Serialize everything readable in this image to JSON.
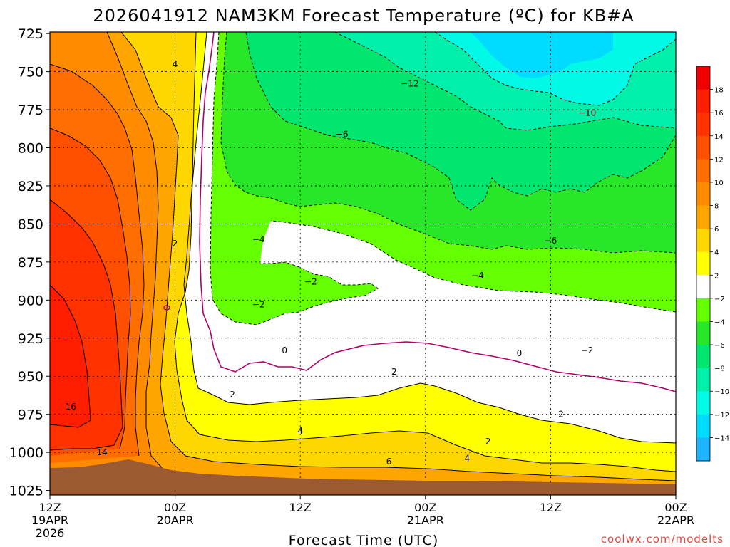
{
  "chart_data": {
    "type": "heatmap",
    "title": "2026041912 NAM3KM Forecast Temperature (ºC) for KB#A",
    "xlabel": "Forecast Time (UTC)",
    "ylabel": "",
    "y_ticks": [
      "725",
      "750",
      "775",
      "800",
      "825",
      "850",
      "875",
      "900",
      "925",
      "950",
      "975",
      "1000",
      "1025"
    ],
    "y_values": [
      725,
      750,
      775,
      800,
      825,
      850,
      875,
      900,
      925,
      950,
      975,
      1000,
      1025
    ],
    "ylim": [
      1028,
      724
    ],
    "x_ticks": [
      {
        "hour": 0,
        "line1": "12Z",
        "line2": "19APR",
        "line3": "2026"
      },
      {
        "hour": 12,
        "line1": "00Z",
        "line2": "20APR",
        "line3": ""
      },
      {
        "hour": 24,
        "line1": "12Z",
        "line2": "",
        "line3": ""
      },
      {
        "hour": 36,
        "line1": "00Z",
        "line2": "21APR",
        "line3": ""
      },
      {
        "hour": 48,
        "line1": "12Z",
        "line2": "",
        "line3": ""
      },
      {
        "hour": 60,
        "line1": "00Z",
        "line2": "22APR",
        "line3": ""
      }
    ],
    "xlim": [
      0,
      60
    ],
    "colorbar": {
      "boundaries": [
        -16,
        -14,
        -12,
        -10,
        -8,
        -6,
        -4,
        -2,
        2,
        4,
        6,
        8,
        10,
        12,
        14,
        16,
        18,
        20
      ],
      "colors": [
        "#1eb4ff",
        "#00dcff",
        "#00fae6",
        "#00f0aa",
        "#00e66e",
        "#28e628",
        "#64ff00",
        "#ffffff",
        "#ffff00",
        "#ffd700",
        "#ffa500",
        "#ff8c00",
        "#ff6e00",
        "#ff5000",
        "#ff3200",
        "#ff1e00",
        "#f00000"
      ],
      "tick_labels": [
        "18",
        "16",
        "14",
        "12",
        "10",
        "8",
        "6",
        "4",
        "2",
        "−2",
        "−4",
        "−6",
        "−8",
        "−10",
        "−12",
        "−14"
      ]
    },
    "contours": [
      {
        "label": "-12",
        "hour": 34.5,
        "p": 758
      },
      {
        "label": "-10",
        "hour": 51.5,
        "p": 777
      },
      {
        "label": "-6",
        "hour": 28.0,
        "p": 791
      },
      {
        "label": "-6",
        "hour": 48.0,
        "p": 861
      },
      {
        "label": "-4",
        "hour": 20.0,
        "p": 860
      },
      {
        "label": "-4",
        "hour": 41.0,
        "p": 884
      },
      {
        "label": "-2",
        "hour": 25.0,
        "p": 888
      },
      {
        "label": "-2",
        "hour": 20.0,
        "p": 903
      },
      {
        "label": "-2",
        "hour": 51.5,
        "p": 933
      },
      {
        "label": "0",
        "hour": 22.5,
        "p": 933
      },
      {
        "label": "0",
        "hour": 45.0,
        "p": 935
      },
      {
        "label": "2",
        "hour": 12.0,
        "p": 863
      },
      {
        "label": "2",
        "hour": 17.5,
        "p": 962
      },
      {
        "label": "2",
        "hour": 33.0,
        "p": 947
      },
      {
        "label": "2",
        "hour": 42.0,
        "p": 993
      },
      {
        "label": "2",
        "hour": 49.0,
        "p": 975
      },
      {
        "label": "4",
        "hour": 12.0,
        "p": 745
      },
      {
        "label": "4",
        "hour": 24.0,
        "p": 986
      },
      {
        "label": "4",
        "hour": 40.0,
        "p": 1004
      },
      {
        "label": "6",
        "hour": 32.5,
        "p": 1006
      },
      {
        "label": "14",
        "hour": 5.0,
        "p": 1000
      },
      {
        "label": "16",
        "hour": 2.0,
        "p": 970
      }
    ],
    "color_regions": [
      {
        "name": "surface-ground",
        "color": "#9c5a32"
      },
      {
        "name": "warm-sector",
        "color": "#ff8c00"
      },
      {
        "name": "cold-aloft",
        "color": "#64ff00"
      }
    ]
  },
  "credit": "coolwx.com/modelts"
}
